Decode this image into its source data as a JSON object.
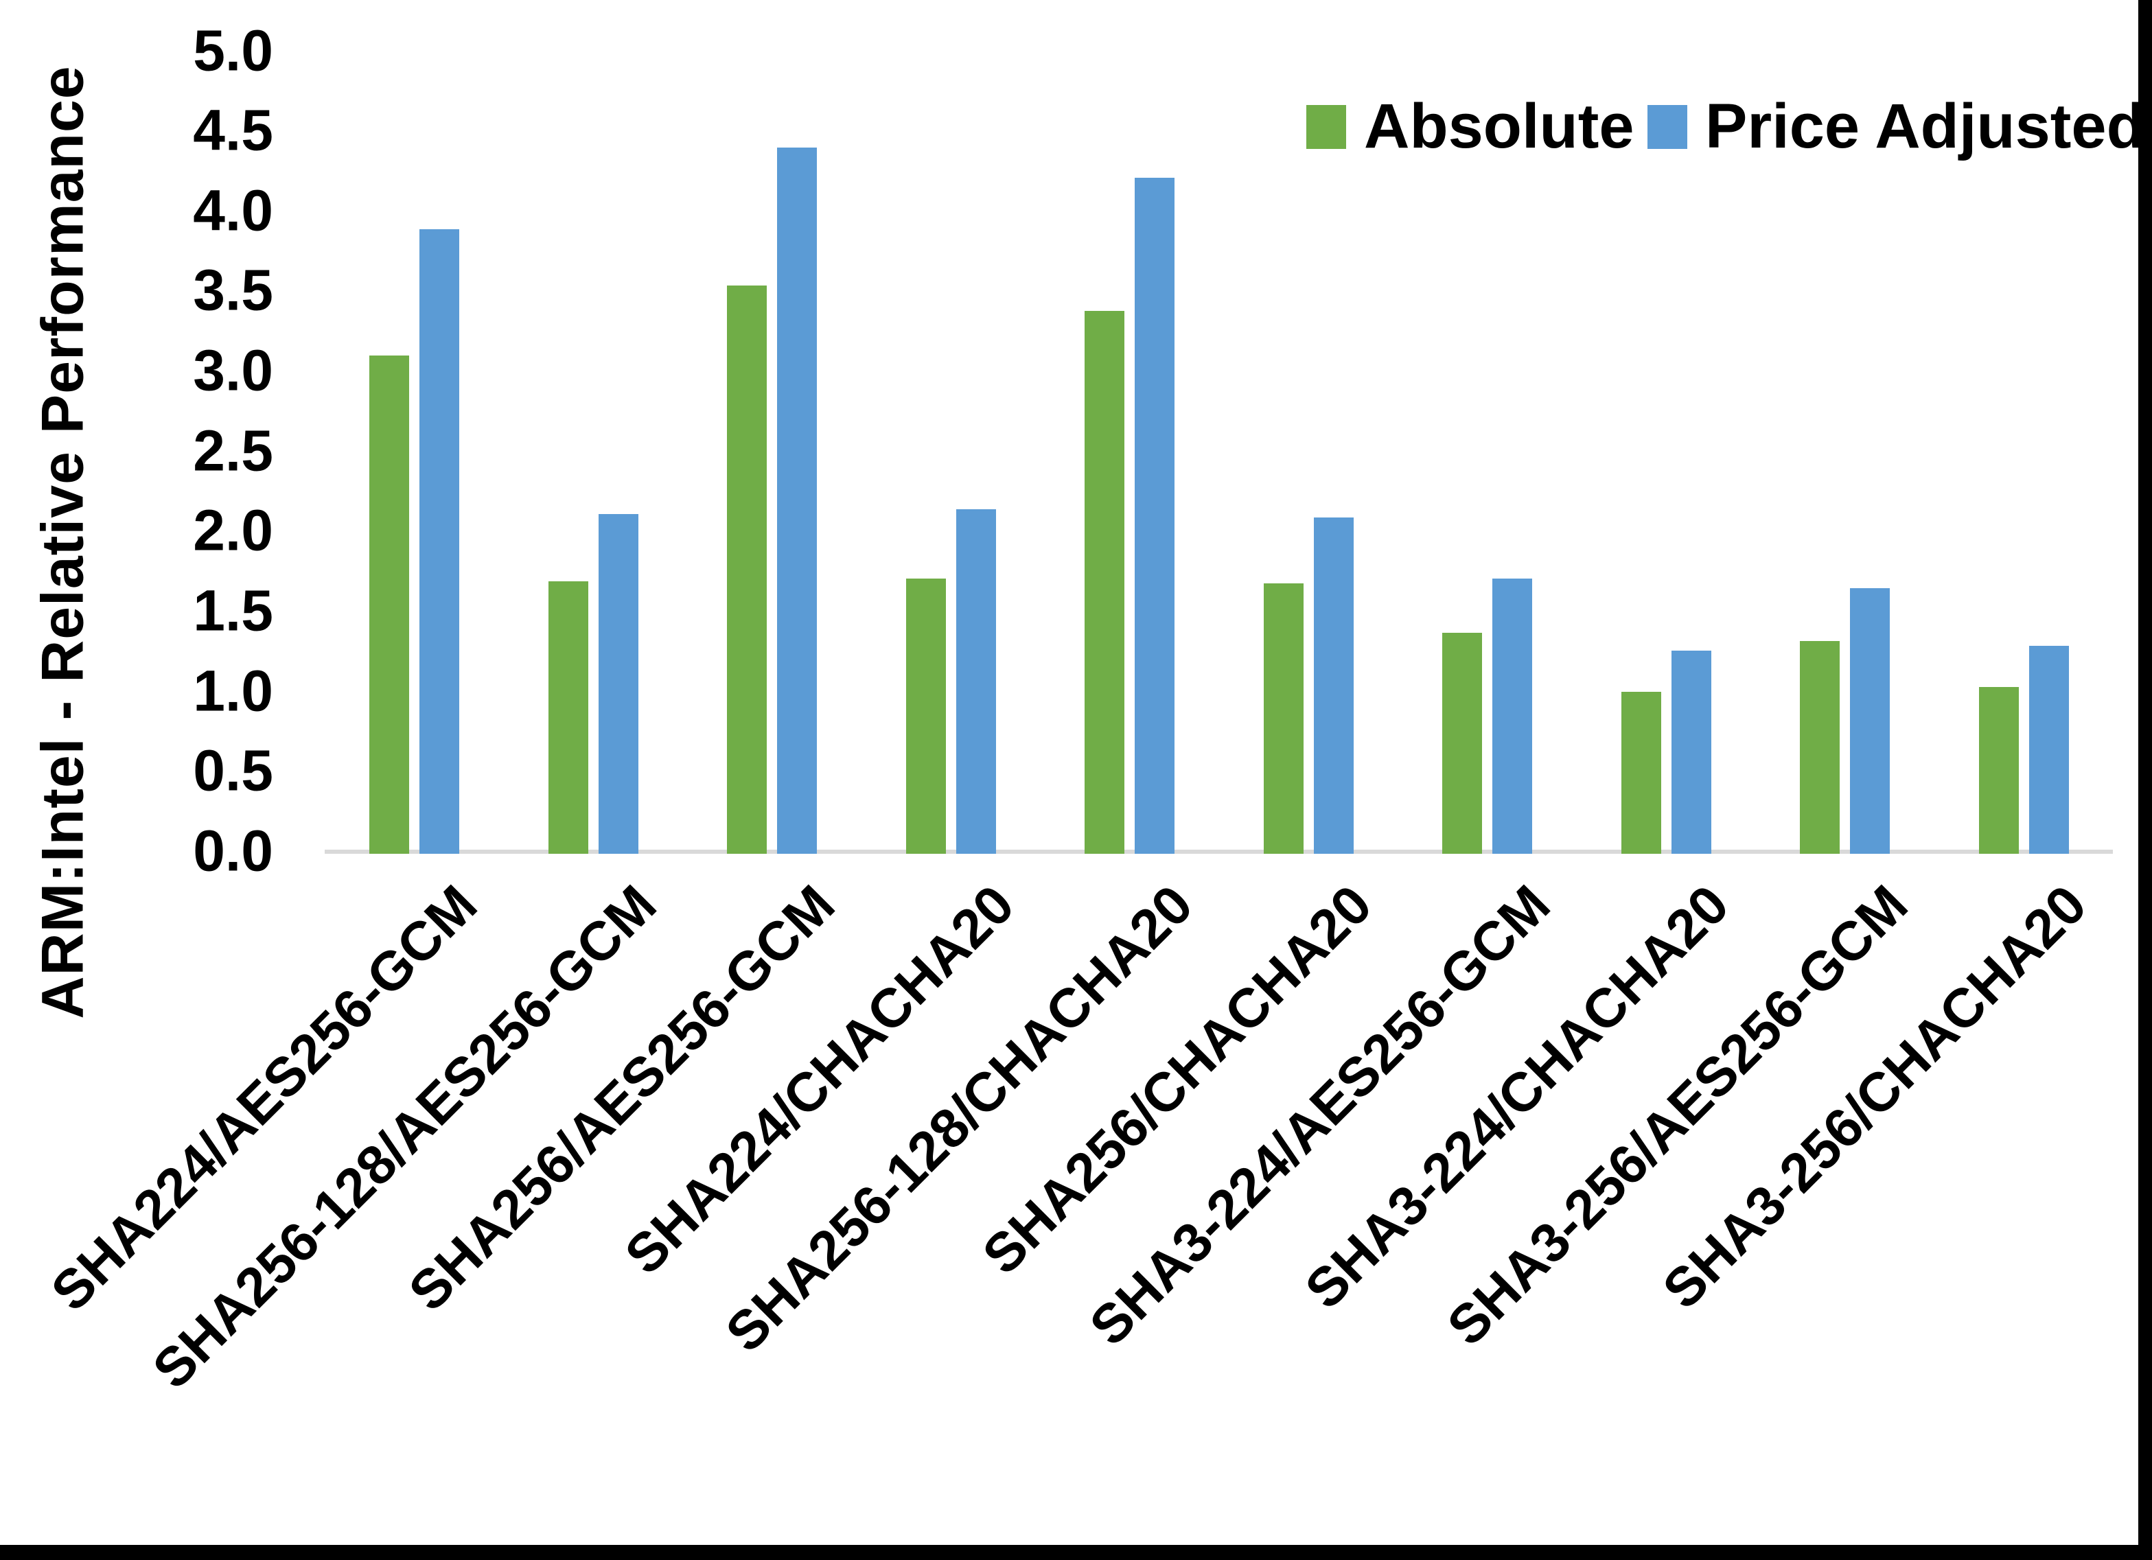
{
  "chart_data": {
    "type": "bar",
    "title": "",
    "xlabel": "",
    "ylabel": "ARM:Intel - Relative Performance",
    "ylim": [
      0.0,
      5.0
    ],
    "ytick_labels": [
      "5.0",
      "4.5",
      "4.0",
      "3.5",
      "3.0",
      "2.5",
      "2.0",
      "1.5",
      "1.0",
      "0.5",
      "0.0"
    ],
    "grid": false,
    "legend_position": "top-right",
    "categories": [
      "SHA224/AES256-GCM",
      "SHA256-128/AES256-GCM",
      "SHA256/AES256-GCM",
      "SHA224/CHACHA20",
      "SHA256-128/CHACHA20",
      "SHA256/CHACHA20",
      "SHA3-224/AES256-GCM",
      "SHA3-224/CHACHA20",
      "SHA3-256/AES256-GCM",
      "SHA3-256/CHACHA20"
    ],
    "series": [
      {
        "name": "Absolute",
        "color": "#70AD47",
        "values": [
          3.11,
          1.7,
          3.55,
          1.72,
          3.39,
          1.69,
          1.38,
          1.01,
          1.33,
          1.04
        ]
      },
      {
        "name": "Price Adjusted",
        "color": "#5B9BD5",
        "values": [
          3.9,
          2.12,
          4.41,
          2.15,
          4.22,
          2.1,
          1.72,
          1.27,
          1.66,
          1.3
        ]
      }
    ]
  },
  "colors": {
    "background": "#FFFFFF",
    "axis_line": "#D9D9D9",
    "text": "#000000",
    "frame_border": "#000000"
  }
}
